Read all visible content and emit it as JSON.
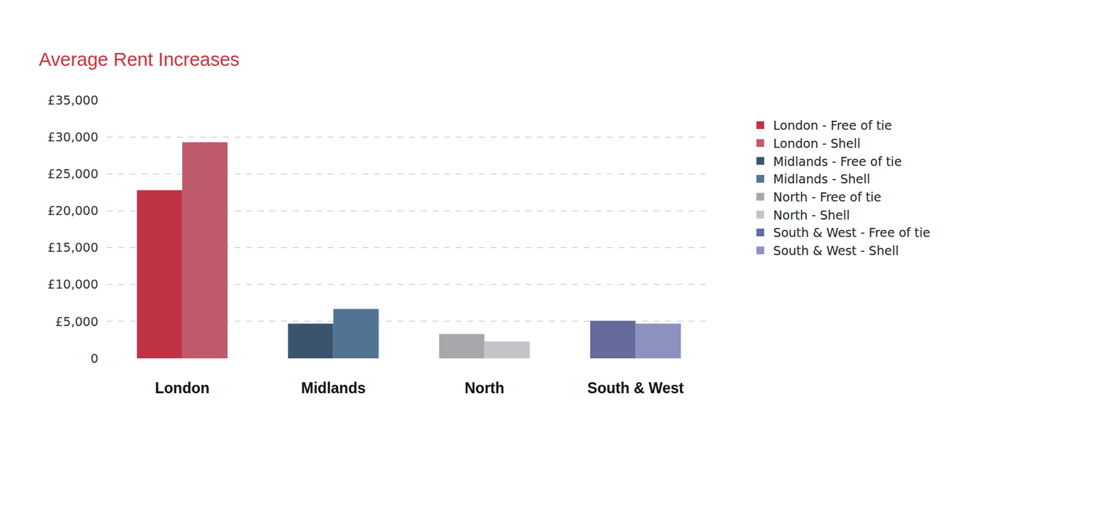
{
  "chart_data": {
    "type": "bar",
    "title": "Average Rent Increases",
    "categories": [
      "London",
      "Midlands",
      "North",
      "South & West"
    ],
    "series": [
      {
        "name": "London - Free of tie",
        "color": "#bf3347",
        "values": [
          22800,
          null,
          null,
          null
        ]
      },
      {
        "name": "London - Shell",
        "color": "#bf5b6b",
        "values": [
          29300,
          null,
          null,
          null
        ]
      },
      {
        "name": "Midlands - Free of tie",
        "color": "#3b546e",
        "values": [
          null,
          4700,
          null,
          null
        ]
      },
      {
        "name": "Midlands - Shell",
        "color": "#517394",
        "values": [
          null,
          6700,
          null,
          null
        ]
      },
      {
        "name": "North - Free of tie",
        "color": "#a7a8ab",
        "values": [
          null,
          null,
          3300,
          null
        ]
      },
      {
        "name": "North - Shell",
        "color": "#c3c4c7",
        "values": [
          null,
          null,
          2300,
          null
        ]
      },
      {
        "name": "South & West - Free of tie",
        "color": "#646b9a",
        "values": [
          null,
          null,
          null,
          5100
        ]
      },
      {
        "name": "South & West - Shell",
        "color": "#8d91c0",
        "values": [
          null,
          null,
          null,
          4700
        ]
      }
    ],
    "ylim": [
      0,
      35000
    ],
    "yticks": [
      0,
      {
        "value": 5000,
        "label": "£5,000"
      },
      {
        "value": 10000,
        "label": "£10,000"
      },
      {
        "value": 15000,
        "label": "£15,000"
      },
      {
        "value": 20000,
        "label": "£20,000"
      },
      {
        "value": 25000,
        "label": "£25,000"
      },
      {
        "value": 30000,
        "label": "£30,000"
      },
      {
        "value": 35000,
        "label": "£35,000"
      }
    ],
    "grid": true,
    "legend": "right"
  }
}
